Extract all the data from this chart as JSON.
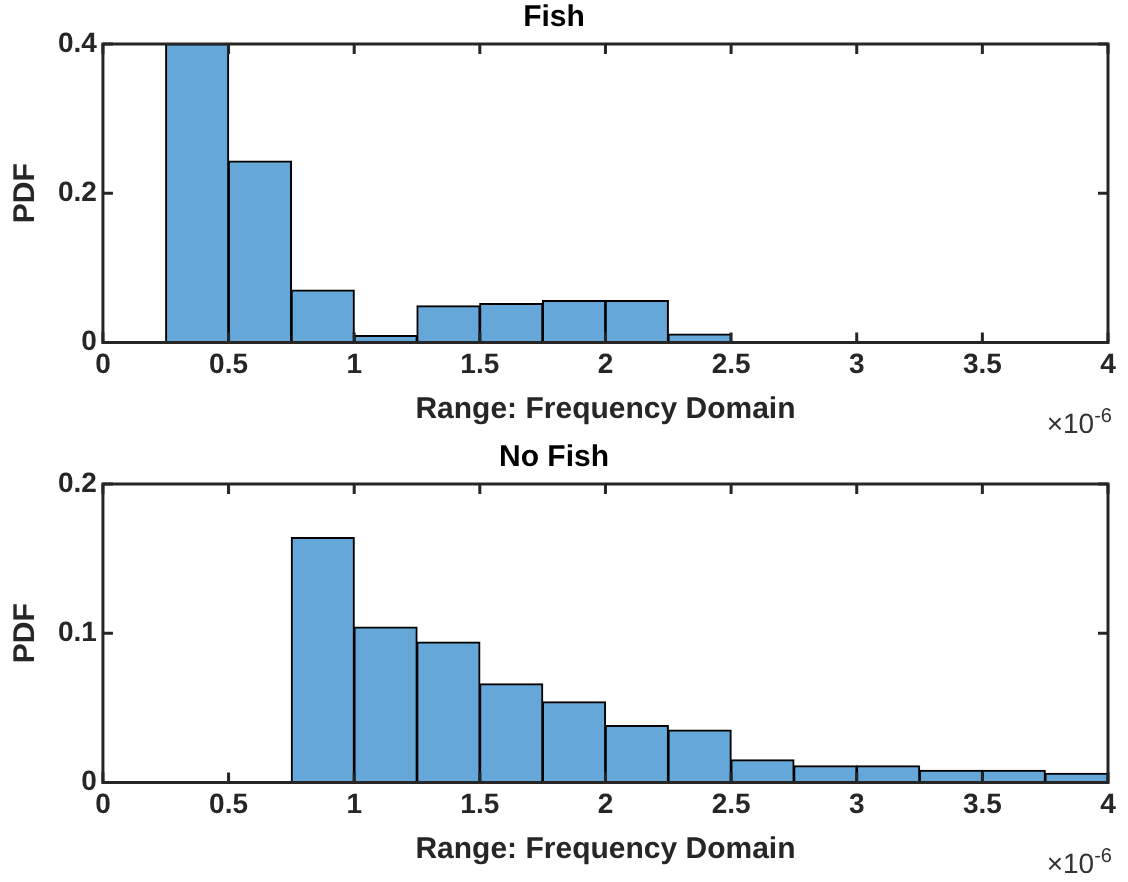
{
  "chart_data": [
    {
      "type": "histogram",
      "title": "Fish",
      "xlabel": "Range: Frequency Domain",
      "ylabel": "PDF",
      "annotations": [
        "×10$^{-6}$"
      ],
      "bins": [
        0.25,
        0.5,
        0.75,
        1,
        1.25,
        1.5,
        1.75,
        2,
        2.25,
        2.5,
        2.75,
        3,
        3.25,
        3.5,
        3.75,
        4
      ],
      "values": [
        0.4,
        0.243,
        0.07,
        0.009,
        0.049,
        0.052,
        0.056,
        0.056,
        0.011,
        0,
        0,
        0,
        0,
        0,
        0
      ],
      "color": "#65a7d8",
      "xlim": [
        0,
        4
      ],
      "xticks": [
        0,
        0.5,
        1,
        1.5,
        2,
        2.5,
        3,
        3.5,
        4
      ],
      "ylim": [
        0,
        0.4
      ],
      "yticks": [
        0,
        0.2,
        0.4
      ],
      "grid": false,
      "legend": false
    },
    {
      "type": "histogram",
      "title": "No Fish",
      "xlabel": "Range: Frequency Domain",
      "ylabel": "PDF",
      "annotations": [
        "×10$^{-6}$"
      ],
      "bins": [
        0.75,
        1,
        1.25,
        1.5,
        1.75,
        2,
        2.25,
        2.5,
        2.75,
        3,
        3.25,
        3.5,
        3.75,
        4
      ],
      "values": [
        0.164,
        0.104,
        0.094,
        0.066,
        0.054,
        0.038,
        0.035,
        0.015,
        0.011,
        0.011,
        0.008,
        0.008,
        0.006
      ],
      "color": "#65a7d8",
      "xlim": [
        0,
        4
      ],
      "xticks": [
        0,
        0.5,
        1,
        1.5,
        2,
        2.5,
        3,
        3.5,
        4
      ],
      "ylim": [
        0,
        0.2
      ],
      "yticks": [
        0,
        0.1,
        0.2
      ],
      "grid": false,
      "legend": false
    }
  ]
}
